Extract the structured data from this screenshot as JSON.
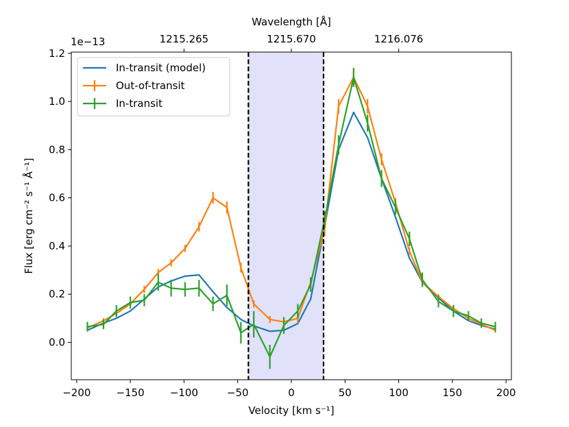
{
  "chart_data": {
    "type": "line",
    "xlabel": "Velocity [km s⁻¹]",
    "ylabel": "Flux [erg cm⁻² s⁻¹ Å⁻¹]",
    "top_xlabel": "Wavelength [Å]",
    "offset_text": "1e−13",
    "xlim": [
      -205,
      205
    ],
    "ylim": [
      -0.155,
      1.205
    ],
    "x_ticks": [
      -200,
      -150,
      -100,
      -50,
      0,
      50,
      100,
      150,
      200
    ],
    "x_tick_labels": [
      "−200",
      "−150",
      "−100",
      "−50",
      "0",
      "50",
      "100",
      "150",
      "200"
    ],
    "y_ticks": [
      0.0,
      0.2,
      0.4,
      0.6,
      0.8,
      1.0,
      1.2
    ],
    "y_tick_labels": [
      "0.0",
      "0.2",
      "0.4",
      "0.6",
      "0.8",
      "1.0",
      "1.2"
    ],
    "top_ticks": [
      -100,
      0,
      100
    ],
    "top_tick_labels": [
      "1215.265",
      "1215.670",
      "1216.076"
    ],
    "shaded_region": {
      "x0": -40,
      "x1": 30,
      "color": "#e1e1fa"
    },
    "vlines": [
      -40,
      30
    ],
    "legend_position": "upper left",
    "series": [
      {
        "name": "In-transit (model)",
        "color": "#1f77b4",
        "x": [
          -190,
          -175,
          -163,
          -150,
          -137,
          -124,
          -112,
          -99,
          -86,
          -73,
          -60,
          -47,
          -35,
          -20,
          -7,
          6,
          18,
          31,
          44,
          58,
          71,
          84,
          97,
          110,
          122,
          137,
          151,
          165,
          177,
          190
        ],
        "y": [
          0.05,
          0.08,
          0.1,
          0.13,
          0.18,
          0.23,
          0.255,
          0.275,
          0.28,
          0.21,
          0.145,
          0.095,
          0.068,
          0.046,
          0.05,
          0.078,
          0.18,
          0.48,
          0.8,
          0.955,
          0.85,
          0.68,
          0.52,
          0.35,
          0.25,
          0.185,
          0.13,
          0.09,
          0.07,
          0.055
        ],
        "yerr": []
      },
      {
        "name": "Out-of-transit",
        "color": "#ff7f0e",
        "x": [
          -190,
          -175,
          -163,
          -150,
          -137,
          -124,
          -112,
          -99,
          -86,
          -73,
          -60,
          -47,
          -35,
          -20,
          -7,
          6,
          18,
          31,
          44,
          58,
          71,
          84,
          97,
          110,
          122,
          137,
          151,
          165,
          177,
          190
        ],
        "y": [
          0.06,
          0.09,
          0.12,
          0.16,
          0.22,
          0.29,
          0.33,
          0.39,
          0.48,
          0.6,
          0.56,
          0.31,
          0.16,
          0.095,
          0.085,
          0.1,
          0.25,
          0.47,
          0.98,
          1.1,
          0.98,
          0.76,
          0.58,
          0.38,
          0.25,
          0.19,
          0.14,
          0.1,
          0.075,
          0.05
        ],
        "yerr": [
          0.01,
          0.01,
          0.01,
          0.01,
          0.015,
          0.015,
          0.015,
          0.015,
          0.02,
          0.025,
          0.025,
          0.02,
          0.015,
          0.015,
          0.015,
          0.02,
          0.02,
          0.03,
          0.03,
          0.03,
          0.03,
          0.025,
          0.02,
          0.015,
          0.015,
          0.01,
          0.01,
          0.01,
          0.01,
          0.01
        ]
      },
      {
        "name": "In-transit",
        "color": "#2ca02c",
        "x": [
          -190,
          -175,
          -163,
          -150,
          -137,
          -124,
          -112,
          -99,
          -86,
          -73,
          -60,
          -47,
          -35,
          -20,
          -7,
          6,
          18,
          31,
          44,
          58,
          71,
          84,
          97,
          110,
          122,
          137,
          151,
          165,
          177,
          190
        ],
        "y": [
          0.065,
          0.075,
          0.13,
          0.165,
          0.175,
          0.25,
          0.225,
          0.22,
          0.225,
          0.16,
          0.195,
          0.04,
          0.075,
          -0.06,
          0.07,
          0.13,
          0.24,
          0.51,
          0.82,
          1.1,
          0.91,
          0.68,
          0.56,
          0.43,
          0.26,
          0.17,
          0.13,
          0.11,
          0.08,
          0.065
        ],
        "yerr": [
          0.02,
          0.02,
          0.025,
          0.025,
          0.025,
          0.035,
          0.035,
          0.03,
          0.035,
          0.03,
          0.045,
          0.045,
          0.055,
          0.05,
          0.035,
          0.03,
          0.03,
          0.035,
          0.04,
          0.04,
          0.035,
          0.035,
          0.03,
          0.03,
          0.03,
          0.025,
          0.025,
          0.02,
          0.02,
          0.02
        ]
      }
    ]
  }
}
